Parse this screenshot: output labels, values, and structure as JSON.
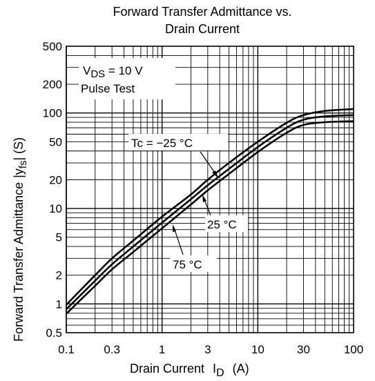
{
  "chart_data": {
    "type": "line",
    "title_line1": "Forward Transfer Admittance vs.",
    "title_line2": "Drain Current",
    "xlabel": "Drain Current",
    "xlabel_symbol": "I",
    "xlabel_subscript": "D",
    "xlabel_unit": "(A)",
    "ylabel": "Forward Transfer Admittance",
    "ylabel_symbol": "|y",
    "ylabel_subscript": "fs",
    "ylabel_unit": "| (S)",
    "x_scale": "log",
    "y_scale": "log",
    "xlim": [
      0.1,
      100
    ],
    "ylim": [
      0.5,
      500
    ],
    "grid": true,
    "x_ticks": [
      {
        "value": 0.1,
        "label": "0.1"
      },
      {
        "value": 0.3,
        "label": "0.3"
      },
      {
        "value": 1,
        "label": "1"
      },
      {
        "value": 3,
        "label": "3"
      },
      {
        "value": 10,
        "label": "10"
      },
      {
        "value": 30,
        "label": "30"
      },
      {
        "value": 100,
        "label": "100"
      }
    ],
    "y_ticks": [
      {
        "value": 0.5,
        "label": "0.5"
      },
      {
        "value": 1,
        "label": "1"
      },
      {
        "value": 2,
        "label": "2"
      },
      {
        "value": 5,
        "label": "5"
      },
      {
        "value": 10,
        "label": "10"
      },
      {
        "value": 20,
        "label": "20"
      },
      {
        "value": 50,
        "label": "50"
      },
      {
        "value": 100,
        "label": "100"
      },
      {
        "value": 200,
        "label": "200"
      },
      {
        "value": 500,
        "label": "500"
      }
    ],
    "conditions": {
      "vds_symbol": "V",
      "vds_subscript": "DS",
      "vds_value": "= 10 V",
      "test": "Pulse Test"
    },
    "series": [
      {
        "name": "Tc = −25 °C",
        "x": [
          0.1,
          0.2,
          0.3,
          0.5,
          1,
          2,
          3,
          5,
          10,
          20,
          30,
          50,
          100
        ],
        "y": [
          0.98,
          2.0,
          3.0,
          4.6,
          8.2,
          14,
          20,
          30,
          50,
          79,
          95,
          105,
          110
        ]
      },
      {
        "name": "25 °C",
        "x": [
          0.1,
          0.2,
          0.3,
          0.5,
          1,
          2,
          3,
          5,
          10,
          20,
          30,
          50,
          100
        ],
        "y": [
          0.88,
          1.75,
          2.6,
          4.0,
          7.1,
          12.5,
          17.5,
          26,
          44,
          70,
          85,
          92,
          95
        ]
      },
      {
        "name": "75 °C",
        "x": [
          0.1,
          0.2,
          0.3,
          0.5,
          1,
          2,
          3,
          5,
          10,
          20,
          30,
          50,
          100
        ],
        "y": [
          0.79,
          1.55,
          2.3,
          3.5,
          6.2,
          11,
          15.5,
          23,
          39,
          62,
          75,
          80,
          82
        ]
      }
    ]
  }
}
